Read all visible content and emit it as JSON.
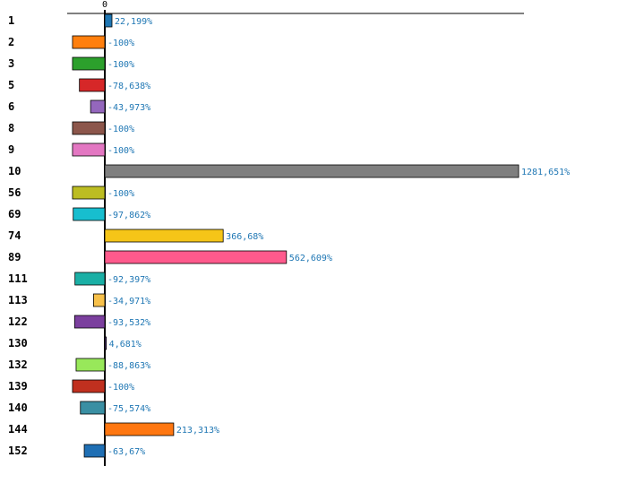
{
  "chart_data": {
    "type": "bar",
    "orientation": "horizontal",
    "categories": [
      "1",
      "2",
      "3",
      "5",
      "6",
      "8",
      "9",
      "10",
      "56",
      "69",
      "74",
      "89",
      "111",
      "113",
      "122",
      "130",
      "132",
      "139",
      "140",
      "144",
      "152"
    ],
    "values": [
      22.199,
      -100,
      -100,
      -78.638,
      -43.973,
      -100,
      -100,
      1281.651,
      -100,
      -97.862,
      366.68,
      562.609,
      -92.397,
      -34.971,
      -93.532,
      4.681,
      -88.863,
      -100,
      -75.574,
      213.313,
      -63.67
    ],
    "value_labels": [
      "22,199%",
      "-100%",
      "-100%",
      "-78,638%",
      "-43,973%",
      "-100%",
      "-100%",
      "1281,651%",
      "-100%",
      "-97,862%",
      "366,68%",
      "562,609%",
      "-92,397%",
      "-34,971%",
      "-93,532%",
      "4,681%",
      "-88,863%",
      "-100%",
      "-75,574%",
      "213,313%",
      "-63,67%"
    ],
    "colors": [
      "#1f77b4",
      "#ff7f0e",
      "#2ca02c",
      "#d62728",
      "#9467bd",
      "#8c564b",
      "#e377c2",
      "#7f7f7f",
      "#bcbd22",
      "#17becf",
      "#f5c518",
      "#ff5a8c",
      "#1aafa5",
      "#f8c14a",
      "#7b3f9e",
      "#4a2d6e",
      "#98e85a",
      "#c0301f",
      "#3a8fa3",
      "#ff7711",
      "#1f6fb4"
    ],
    "zero_tick_label": "0",
    "title": "",
    "xlabel": "",
    "ylabel": "",
    "grid": false,
    "legend": "none"
  }
}
